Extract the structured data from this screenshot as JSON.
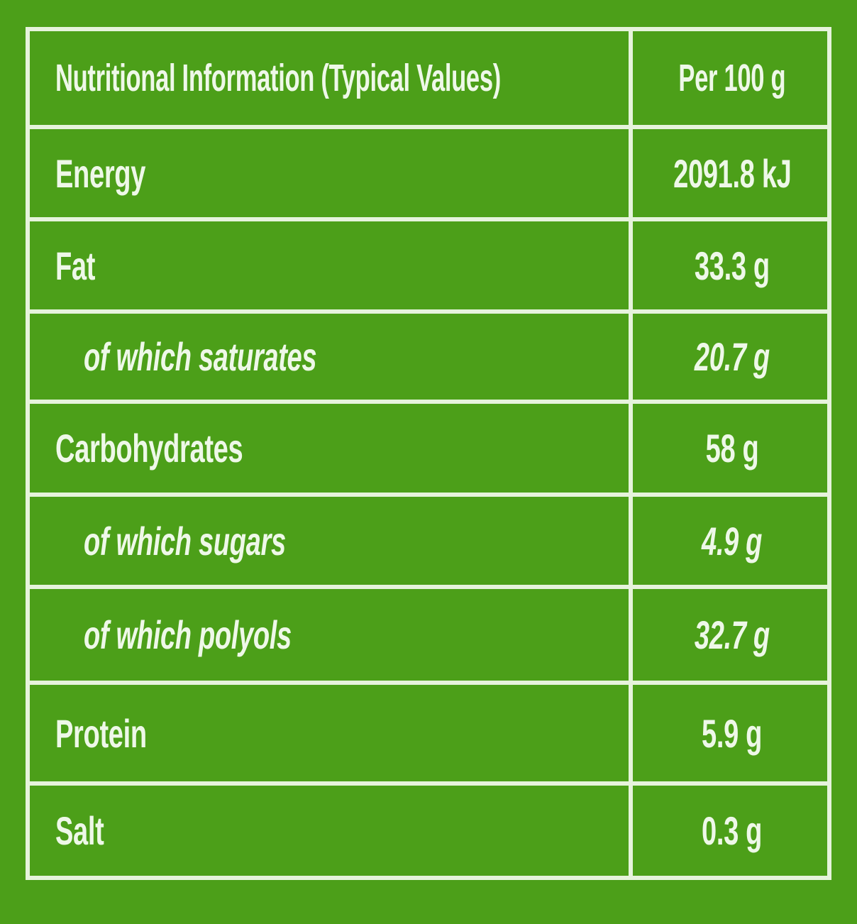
{
  "header": {
    "title": "Nutritional Information (Typical Values)",
    "column": "Per 100 g"
  },
  "rows": [
    {
      "label": "Energy",
      "value": "2091.8 kJ"
    },
    {
      "label": "Fat",
      "value": "33.3 g",
      "sub": [
        {
          "label": "of which saturates",
          "value": "20.7 g"
        }
      ]
    },
    {
      "label": "Carbohydrates",
      "value": "58 g",
      "sub": [
        {
          "label": "of which sugars",
          "value": "4.9 g"
        },
        {
          "label": "of which polyols",
          "value": "32.7 g"
        }
      ]
    },
    {
      "label": "Protein",
      "value": "5.9 g"
    },
    {
      "label": "Salt",
      "value": "0.3 g"
    }
  ]
}
